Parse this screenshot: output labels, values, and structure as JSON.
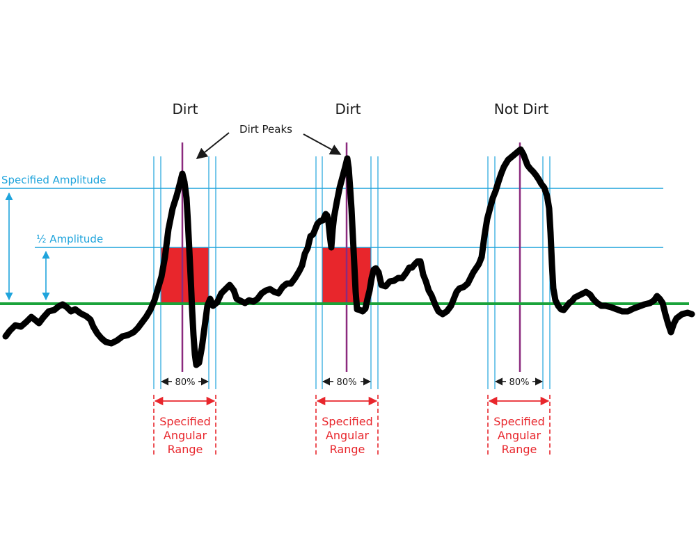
{
  "colors": {
    "signal": "#000000",
    "baseline": "#1aa33a",
    "guide": "#1fa4dc",
    "peak_marker": "#8b2a7e",
    "fill": "#e8262c",
    "range": "#e8262c",
    "text": "#1a1a1a"
  },
  "labels": {
    "peak1_title": "Dirt",
    "peak2_title": "Dirt",
    "peak3_title": "Not Dirt",
    "dirt_peaks": "Dirt Peaks",
    "specified_amplitude": "Specified Amplitude",
    "half_amplitude": "½ Amplitude",
    "pct": "80%",
    "range_line1": "Specified",
    "range_line2": "Angular",
    "range_line3": "Range"
  }
}
